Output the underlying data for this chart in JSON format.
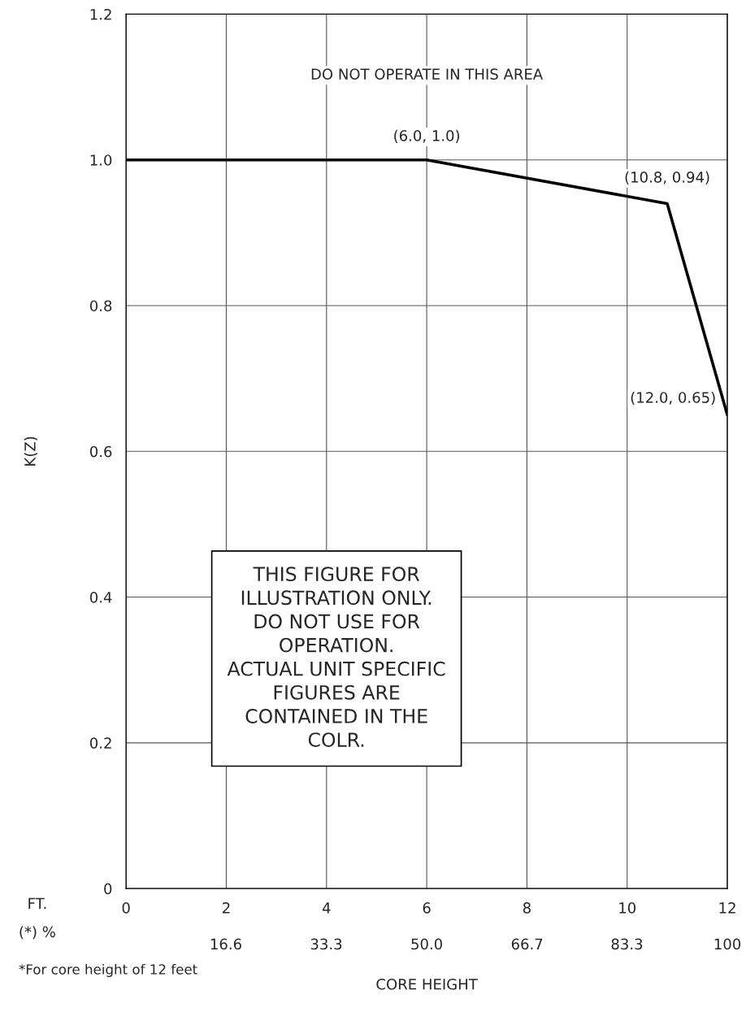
{
  "chart_data": {
    "type": "line",
    "x": [
      0,
      6,
      10.8,
      12
    ],
    "series": [
      {
        "color": "#000000",
        "values": [
          1.0,
          1.0,
          0.94,
          0.65
        ]
      }
    ],
    "xlim": [
      0,
      12
    ],
    "xticks": [
      0,
      2,
      4,
      6,
      8,
      10,
      12
    ],
    "x2lim": [
      0,
      100
    ],
    "x2ticks": [
      16.6,
      33.3,
      {
        "value": 50,
        "label": "50.0"
      },
      66.7,
      83.3,
      100
    ],
    "ylim": [
      0,
      1.2
    ],
    "yticks": [
      0,
      0.2,
      0.4,
      0.6,
      0.8,
      {
        "value": 1,
        "label": "1.0"
      },
      1.2
    ],
    "xlabel": "CORE HEIGHT",
    "ylabel": "K(Z)",
    "grid": true,
    "marker": "none",
    "line_style": "solid",
    "annotations": [
      {
        "text": "(6.0, 1.0)",
        "x": 6,
        "y": 1.0
      },
      {
        "text": "(10.8, 0.94)",
        "x": 10.8,
        "y": 0.94
      },
      {
        "text": "(12.0, 0.65)",
        "x": 12,
        "y": 0.65
      },
      "DO NOT OPERATE IN THIS AREA",
      "THIS FIGURE FOR\nILLUSTRATION ONLY.\nDO NOT USE FOR\nOPERATION.\nACTUAL UNIT SPECIFIC\nFIGURES ARE\nCONTAINED IN THE\nCOLR.",
      "FT.",
      "(*) %",
      "*For core height of 12 feet"
    ]
  }
}
